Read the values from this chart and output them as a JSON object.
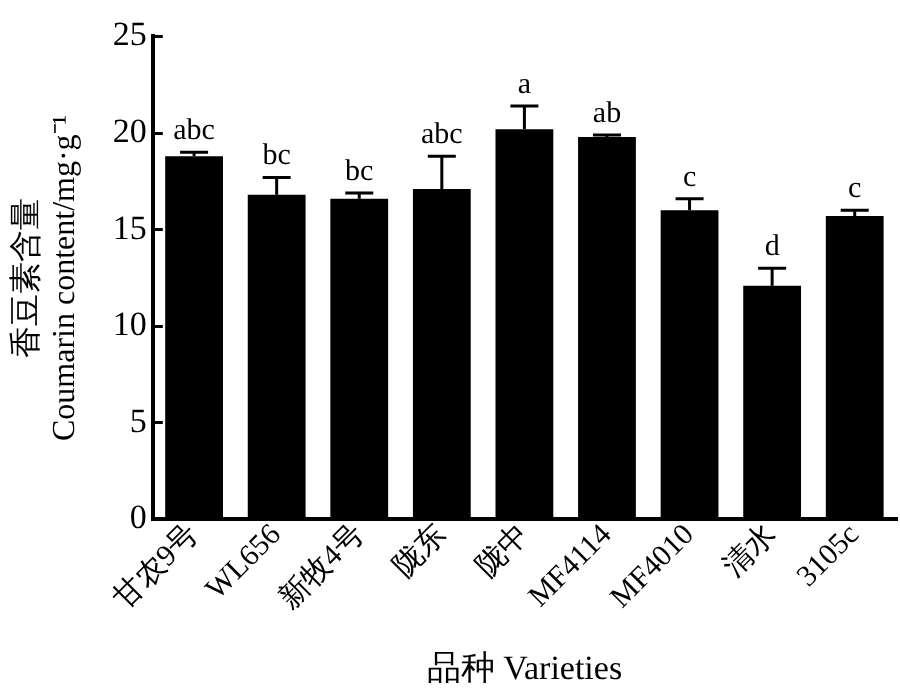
{
  "chart_data": {
    "type": "bar",
    "xlabel": "品种 Varieties",
    "ylabel": "香豆素含量\nCoumarin content/mg·g⁻¹",
    "categories": [
      "甘农9号",
      "WL656",
      "新牧4号",
      "陇东",
      "陇中",
      "MF4114",
      "MF4010",
      "清水",
      "3105c"
    ],
    "values": [
      18.8,
      16.8,
      16.6,
      17.1,
      20.2,
      19.8,
      16.0,
      12.1,
      15.7
    ],
    "errors": [
      [
        18.8,
        19.0
      ],
      [
        16.8,
        17.7
      ],
      [
        16.6,
        16.9
      ],
      [
        17.1,
        18.8
      ],
      [
        20.2,
        21.4
      ],
      [
        19.8,
        19.9
      ],
      [
        16.0,
        16.6
      ],
      [
        12.1,
        13.0
      ],
      [
        15.7,
        16.0
      ]
    ],
    "color": "#000000",
    "ylim": [
      0,
      25
    ],
    "yticks": [
      0,
      5,
      10,
      15,
      20,
      25
    ],
    "grid": false,
    "legend": false,
    "annotations": [
      {
        "text": "abc",
        "x": "甘农9号",
        "y": 19.0
      },
      {
        "text": "bc",
        "x": "WL656",
        "y": 17.7
      },
      {
        "text": "bc",
        "x": "新牧4号",
        "y": 16.9
      },
      {
        "text": "abc",
        "x": "陇东",
        "y": 18.8
      },
      {
        "text": "a",
        "x": "陇中",
        "y": 21.4
      },
      {
        "text": "ab",
        "x": "MF4114",
        "y": 19.9
      },
      {
        "text": "c",
        "x": "MF4010",
        "y": 16.6
      },
      {
        "text": "d",
        "x": "清水",
        "y": 13.0
      },
      {
        "text": "c",
        "x": "3105c",
        "y": 16.0
      }
    ]
  }
}
